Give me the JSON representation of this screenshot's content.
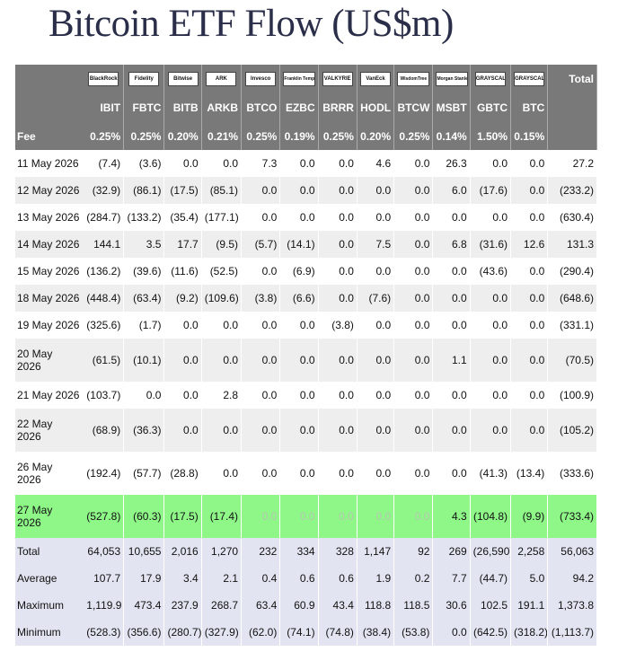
{
  "title": "Bitcoin ETF Flow (US$m)",
  "columns": [
    {
      "ticker": "IBIT",
      "logo": "BlackRock",
      "fee": "0.25%"
    },
    {
      "ticker": "FBTC",
      "logo": "Fidelity",
      "fee": "0.25%"
    },
    {
      "ticker": "BITB",
      "logo": "Bitwise",
      "fee": "0.20%"
    },
    {
      "ticker": "ARKB",
      "logo": "ARK",
      "fee": "0.21%"
    },
    {
      "ticker": "BTCO",
      "logo": "Invesco",
      "fee": "0.25%"
    },
    {
      "ticker": "EZBC",
      "logo": "Franklin Templeton",
      "fee": "0.19%"
    },
    {
      "ticker": "BRRR",
      "logo": "VALKYRIE",
      "fee": "0.25%"
    },
    {
      "ticker": "HODL",
      "logo": "VanEck",
      "fee": "0.20%"
    },
    {
      "ticker": "BTCW",
      "logo": "WisdomTree",
      "fee": "0.25%"
    },
    {
      "ticker": "MSBT",
      "logo": "Morgan Stanley",
      "fee": "0.14%"
    },
    {
      "ticker": "GBTC",
      "logo": "GRAYSCALE",
      "fee": "1.50%"
    },
    {
      "ticker": "BTC",
      "logo": "GRAYSCALE",
      "fee": "0.15%"
    }
  ],
  "total_header": "Total",
  "fee_label": "Fee",
  "rows": [
    {
      "date": "11 May 2026",
      "values": [
        "(7.4)",
        "(3.6)",
        "0.0",
        "0.0",
        "7.3",
        "0.0",
        "0.0",
        "4.6",
        "0.0",
        "26.3",
        "0.0",
        "0.0"
      ],
      "total": "27.2"
    },
    {
      "date": "12 May 2026",
      "values": [
        "(32.9)",
        "(86.1)",
        "(17.5)",
        "(85.1)",
        "0.0",
        "0.0",
        "0.0",
        "0.0",
        "0.0",
        "6.0",
        "(17.6)",
        "0.0"
      ],
      "total": "(233.2)"
    },
    {
      "date": "13 May 2026",
      "values": [
        "(284.7)",
        "(133.2)",
        "(35.4)",
        "(177.1)",
        "0.0",
        "0.0",
        "0.0",
        "0.0",
        "0.0",
        "0.0",
        "0.0",
        "0.0"
      ],
      "total": "(630.4)"
    },
    {
      "date": "14 May 2026",
      "values": [
        "144.1",
        "3.5",
        "17.7",
        "(9.5)",
        "(5.7)",
        "(14.1)",
        "0.0",
        "7.5",
        "0.0",
        "6.8",
        "(31.6)",
        "12.6"
      ],
      "total": "131.3"
    },
    {
      "date": "15 May 2026",
      "values": [
        "(136.2)",
        "(39.6)",
        "(11.6)",
        "(52.5)",
        "0.0",
        "(6.9)",
        "0.0",
        "0.0",
        "0.0",
        "0.0",
        "(43.6)",
        "0.0"
      ],
      "total": "(290.4)"
    },
    {
      "date": "18 May 2026",
      "values": [
        "(448.4)",
        "(63.4)",
        "(9.2)",
        "(109.6)",
        "(3.8)",
        "(6.6)",
        "0.0",
        "(7.6)",
        "0.0",
        "0.0",
        "0.0",
        "0.0"
      ],
      "total": "(648.6)"
    },
    {
      "date": "19 May 2026",
      "values": [
        "(325.6)",
        "(1.7)",
        "0.0",
        "0.0",
        "0.0",
        "0.0",
        "(3.8)",
        "0.0",
        "0.0",
        "0.0",
        "0.0",
        "0.0"
      ],
      "total": "(331.1)"
    },
    {
      "date_line1": "20 May",
      "date_line2": "2026",
      "values": [
        "(61.5)",
        "(10.1)",
        "0.0",
        "0.0",
        "0.0",
        "0.0",
        "0.0",
        "0.0",
        "0.0",
        "1.1",
        "0.0",
        "0.0"
      ],
      "total": "(70.5)"
    },
    {
      "date": "21 May 2026",
      "values": [
        "(103.7)",
        "0.0",
        "0.0",
        "2.8",
        "0.0",
        "0.0",
        "0.0",
        "0.0",
        "0.0",
        "0.0",
        "0.0",
        "0.0"
      ],
      "total": "(100.9)"
    },
    {
      "date_line1": "22 May",
      "date_line2": "2026",
      "values": [
        "(68.9)",
        "(36.3)",
        "0.0",
        "0.0",
        "0.0",
        "0.0",
        "0.0",
        "0.0",
        "0.0",
        "0.0",
        "0.0",
        "0.0"
      ],
      "total": "(105.2)"
    },
    {
      "date_line1": "26 May",
      "date_line2": "2026",
      "values": [
        "(192.4)",
        "(57.7)",
        "(28.8)",
        "0.0",
        "0.0",
        "0.0",
        "0.0",
        "0.0",
        "0.0",
        "0.0",
        "(41.3)",
        "(13.4)"
      ],
      "total": "(333.6)"
    },
    {
      "date_line1": "27 May",
      "date_line2": "2026",
      "values": [
        "(527.8)",
        "(60.3)",
        "(17.5)",
        "(17.4)",
        "0.0",
        "0.0",
        "0.0",
        "0.0",
        "0.0",
        "4.3",
        "(104.8)",
        "(9.9)"
      ],
      "total": "(733.4)",
      "highlight": true
    }
  ],
  "summary": [
    {
      "label": "Total",
      "values": [
        "64,053",
        "10,655",
        "2,016",
        "1,270",
        "232",
        "334",
        "328",
        "1,147",
        "92",
        "269",
        "(26,590)",
        "2,258"
      ],
      "total": "56,063"
    },
    {
      "label": "Average",
      "values": [
        "107.7",
        "17.9",
        "3.4",
        "2.1",
        "0.4",
        "0.6",
        "0.6",
        "1.9",
        "0.2",
        "7.7",
        "(44.7)",
        "5.0"
      ],
      "total": "94.2"
    },
    {
      "label": "Maximum",
      "values": [
        "1,119.9",
        "473.4",
        "237.9",
        "268.7",
        "63.4",
        "60.9",
        "43.4",
        "118.8",
        "118.5",
        "30.6",
        "102.5",
        "191.1"
      ],
      "total": "1,373.8"
    },
    {
      "label": "Minimum",
      "values": [
        "(528.3)",
        "(356.6)",
        "(280.7)",
        "(327.9)",
        "(62.0)",
        "(74.1)",
        "(74.8)",
        "(38.4)",
        "(53.8)",
        "0.0",
        "(642.5)",
        "(318.2)"
      ],
      "total": "(1,113.7)"
    }
  ],
  "colors": {
    "header_bg": "#797979",
    "negative": "#dd2020",
    "zero": "#bbbbbb",
    "highlight": "#8ef788",
    "summary_bg": "#e2e5f1",
    "title": "#2a2e48"
  }
}
